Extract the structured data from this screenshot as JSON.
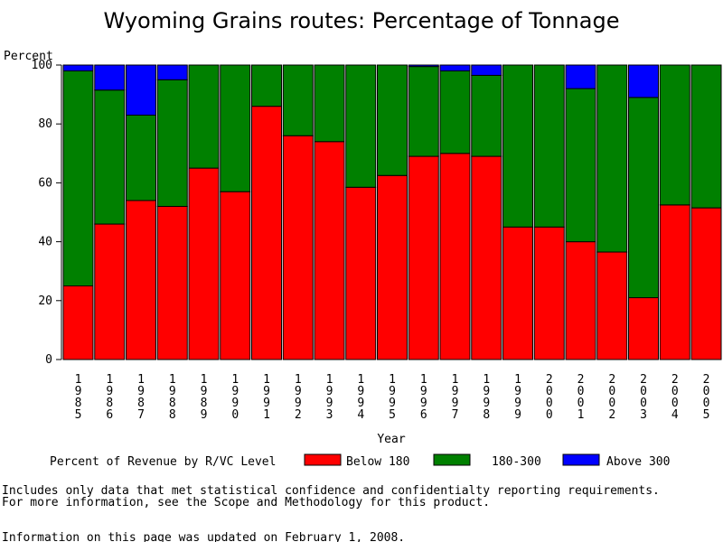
{
  "chart_data": {
    "type": "bar",
    "stacked": true,
    "title": "Wyoming Grains routes: Percentage of Tonnage",
    "ylabel": "Percent",
    "xlabel": "Year",
    "ylim": [
      0,
      100
    ],
    "yticks": [
      0,
      20,
      40,
      60,
      80,
      100
    ],
    "categories": [
      "1985",
      "1986",
      "1987",
      "1988",
      "1989",
      "1990",
      "1991",
      "1992",
      "1993",
      "1994",
      "1995",
      "1996",
      "1997",
      "1998",
      "1999",
      "2000",
      "2001",
      "2002",
      "2003",
      "2004",
      "2005"
    ],
    "series": [
      {
        "name": "Below 180",
        "color": "#ff0000",
        "values": [
          25,
          46,
          54,
          52,
          65,
          57,
          86,
          76,
          74,
          58.5,
          62.5,
          69,
          70,
          69,
          45,
          45,
          40,
          36.5,
          21,
          52.5,
          51.5
        ]
      },
      {
        "name": "180-300",
        "color": "#008000",
        "values": [
          73,
          45.5,
          29,
          43,
          35,
          43,
          14,
          24,
          26,
          41.5,
          37.5,
          30.5,
          28,
          27.5,
          55,
          55,
          52,
          63.5,
          68,
          47.5,
          48.5
        ]
      },
      {
        "name": "Above 300",
        "color": "#0000ff",
        "values": [
          2,
          8.5,
          17,
          5,
          0,
          0,
          0,
          0,
          0,
          0,
          0,
          0.5,
          2,
          3.5,
          0,
          0,
          8,
          0,
          11,
          0,
          0
        ]
      }
    ],
    "legend_title": "Percent of Revenue by R/VC Level"
  },
  "footnote_line1": "Includes only data that met statistical confidence and confidentialty reporting requirements.",
  "footnote_line2": "For more information, see the Scope and Methodology for this product.",
  "updated_line": "Information on this page was updated on February 1, 2008."
}
